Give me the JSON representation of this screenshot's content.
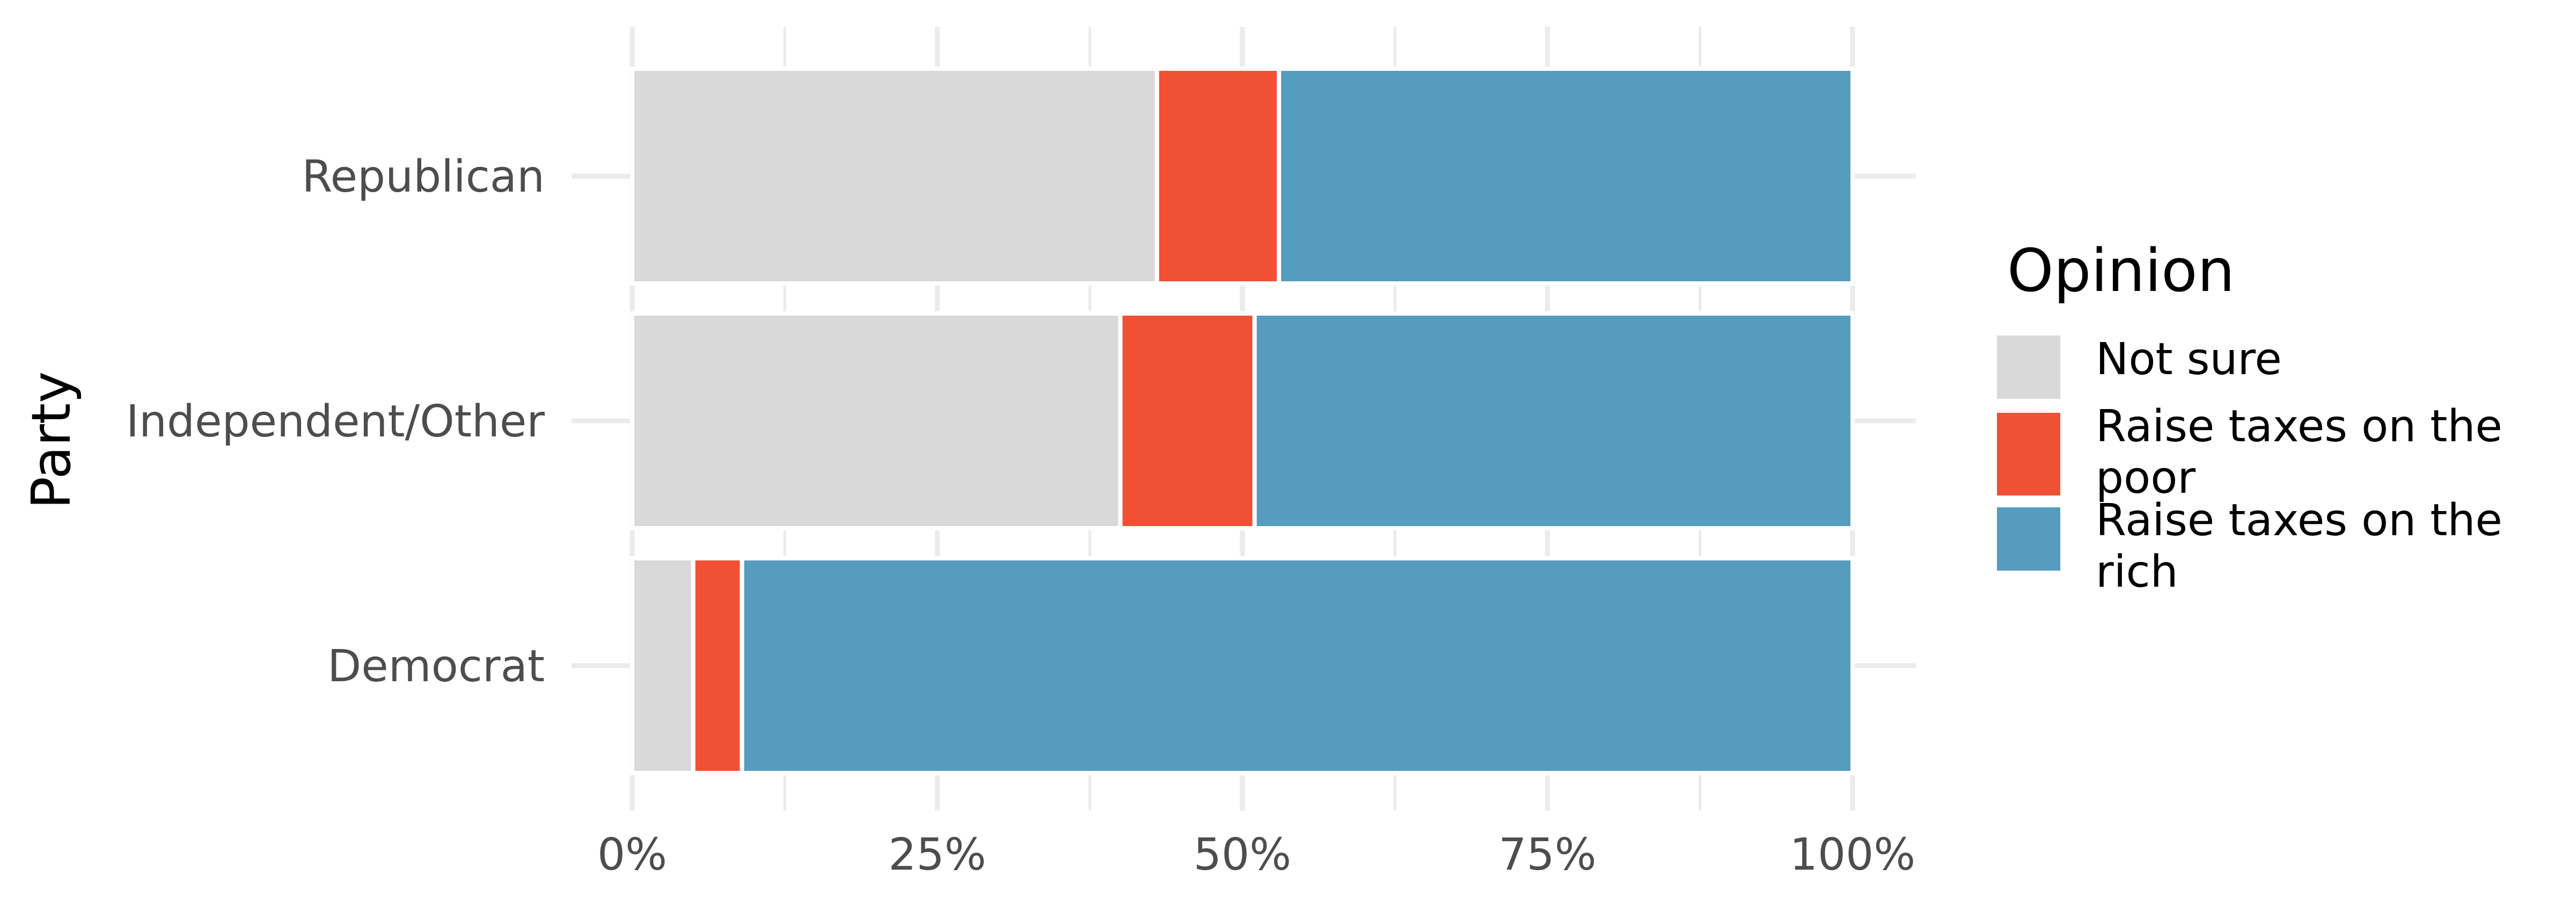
{
  "chart_data": {
    "type": "bar",
    "orientation": "horizontal",
    "stacked": "percent",
    "categories": [
      "Republican",
      "Independent/Other",
      "Democrat"
    ],
    "series": [
      {
        "name": "Not sure",
        "color": "#d9d9d9",
        "values": [
          43,
          40,
          5
        ]
      },
      {
        "name": "Raise taxes on the poor",
        "color": "#f05033",
        "values": [
          10,
          11,
          4
        ]
      },
      {
        "name": "Raise taxes on the rich",
        "color": "#569cbe",
        "values": [
          47,
          49,
          91
        ]
      }
    ],
    "title": "",
    "xlabel": "",
    "ylabel": "Party",
    "xlim": [
      0,
      100
    ],
    "x_ticks": [
      0,
      25,
      50,
      75,
      100
    ],
    "x_tick_labels": [
      "0%",
      "25%",
      "50%",
      "75%",
      "100%"
    ],
    "legend": {
      "title": "Opinion",
      "position": "right",
      "entries": [
        {
          "lines": [
            "Not sure"
          ]
        },
        {
          "lines": [
            "Raise taxes on the",
            "poor"
          ]
        },
        {
          "lines": [
            "Raise taxes on the",
            "rich"
          ]
        }
      ]
    },
    "grid": true,
    "grid_color": "#ebebeb",
    "background": "#ffffff"
  }
}
